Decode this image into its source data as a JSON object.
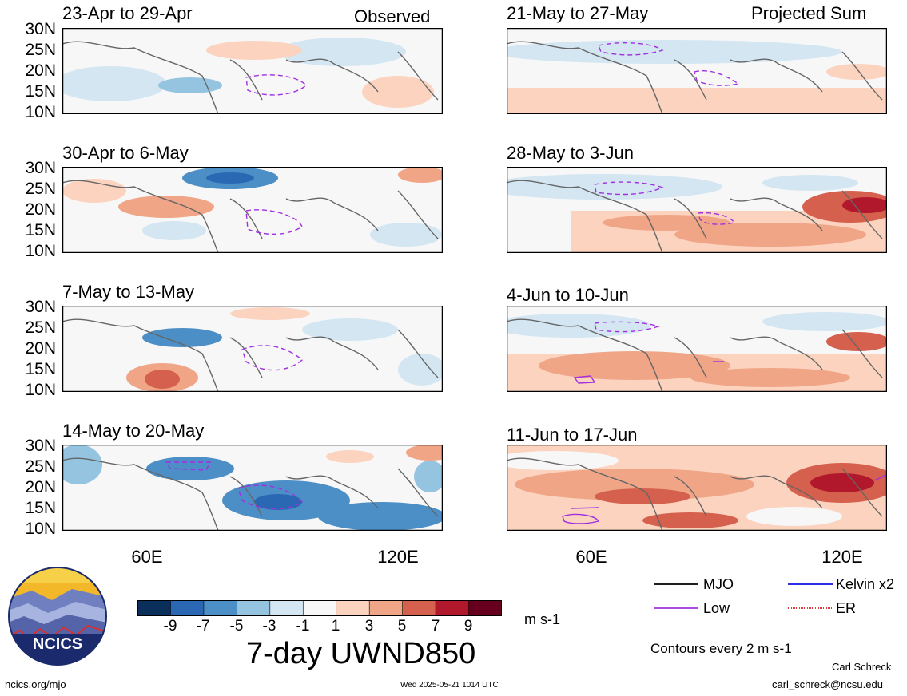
{
  "column_labels": {
    "left": "Observed",
    "right": "Projected Sum"
  },
  "lat_labels": [
    "30N",
    "25N",
    "20N",
    "15N",
    "10N"
  ],
  "lon_labels": [
    "60E",
    "120E"
  ],
  "panels": [
    {
      "title": "23-Apr to 29-Apr",
      "col": 0,
      "row": 0
    },
    {
      "title": "30-Apr to 6-May",
      "col": 0,
      "row": 1
    },
    {
      "title": "7-May to 13-May",
      "col": 0,
      "row": 2
    },
    {
      "title": "14-May to 20-May",
      "col": 0,
      "row": 3
    },
    {
      "title": "21-May to 27-May",
      "col": 1,
      "row": 0
    },
    {
      "title": "28-May to 3-Jun",
      "col": 1,
      "row": 1
    },
    {
      "title": "4-Jun to 10-Jun",
      "col": 1,
      "row": 2
    },
    {
      "title": "11-Jun to 17-Jun",
      "col": 1,
      "row": 3
    }
  ],
  "colorbar": {
    "labels": [
      "-9",
      "-7",
      "-5",
      "-3",
      "-1",
      "1",
      "3",
      "5",
      "7",
      "9"
    ],
    "colors": [
      "#0b2f5b",
      "#2b68b3",
      "#4b8fc6",
      "#94c4e0",
      "#d3e6f2",
      "#f7f7f7",
      "#fbd3bf",
      "#f0a587",
      "#d4604d",
      "#b2182b",
      "#67001f"
    ],
    "unit": "m s-1"
  },
  "main_title": "7-day UWND850",
  "legend": [
    {
      "label": "MJO",
      "color": "#000000"
    },
    {
      "label": "Kelvin x2",
      "color": "#1010e0"
    },
    {
      "label": "Low",
      "color": "#a030e0"
    },
    {
      "label": "ER",
      "color": "#e02020"
    }
  ],
  "contour_note": "Contours every 2 m s-1",
  "author": "Carl Schreck",
  "email": "carl_schreck@ncsu.edu",
  "site": "ncics.org/mjo",
  "timestamp": "Wed 2025-05-21 1014 UTC",
  "logo_text": "NCICS"
}
